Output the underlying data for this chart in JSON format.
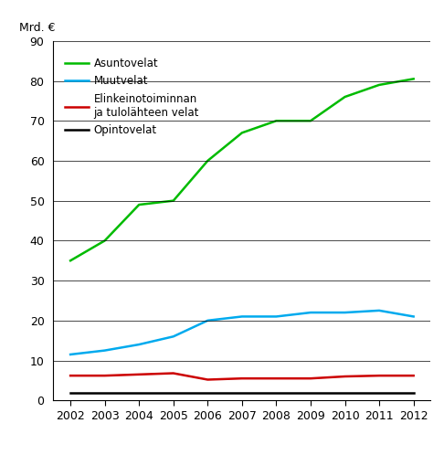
{
  "years": [
    2002,
    2003,
    2004,
    2005,
    2006,
    2007,
    2008,
    2009,
    2010,
    2011,
    2012
  ],
  "asuntovelat": [
    35,
    40,
    49,
    50,
    60,
    67,
    70,
    70,
    76,
    79,
    80.5
  ],
  "muutvelat": [
    11.5,
    12.5,
    14,
    16,
    20,
    21,
    21,
    22,
    22,
    22.5,
    21
  ],
  "elinkeinovelat": [
    6.2,
    6.2,
    6.5,
    6.8,
    5.2,
    5.5,
    5.5,
    5.5,
    6.0,
    6.2,
    6.2
  ],
  "opintovelat": [
    1.8,
    1.8,
    1.8,
    1.8,
    1.8,
    1.8,
    1.8,
    1.8,
    1.8,
    1.8,
    1.8
  ],
  "line_colors": {
    "asuntovelat": "#00bb00",
    "muutvelat": "#00aaee",
    "elinkeinovelat": "#cc0000",
    "opintovelat": "#000000"
  },
  "legend_labels": {
    "asuntovelat": "Asuntovelat",
    "muutvelat": "Muutvelat",
    "elinkeinovelat": "Elinkeinotoiminnan\nja tulolähteen velat",
    "opintovelat": "Opintovelat"
  },
  "ylabel": "Mrd. €",
  "ylim": [
    0,
    90
  ],
  "yticks": [
    0,
    10,
    20,
    30,
    40,
    50,
    60,
    70,
    80,
    90
  ],
  "background_color": "#ffffff",
  "linewidth": 1.8
}
